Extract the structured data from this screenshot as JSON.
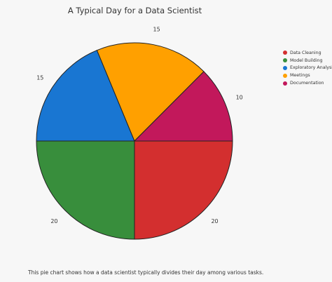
{
  "chart_data": {
    "type": "pie",
    "title": "A Typical Day for a Data Scientist",
    "slices": [
      {
        "label": "Data Cleaning",
        "value": 20,
        "color": "#d32f2f"
      },
      {
        "label": "Model Building",
        "value": 20,
        "color": "#388e3c"
      },
      {
        "label": "Exploratory Analysis",
        "value": 15,
        "color": "#1976d2"
      },
      {
        "label": "Meetings",
        "value": 15,
        "color": "#ffa000"
      },
      {
        "label": "Documentation",
        "value": 10,
        "color": "#c2185b"
      }
    ],
    "legend_position": "right",
    "caption": "This pie chart shows how a data scientist typically divides their day among various tasks."
  }
}
